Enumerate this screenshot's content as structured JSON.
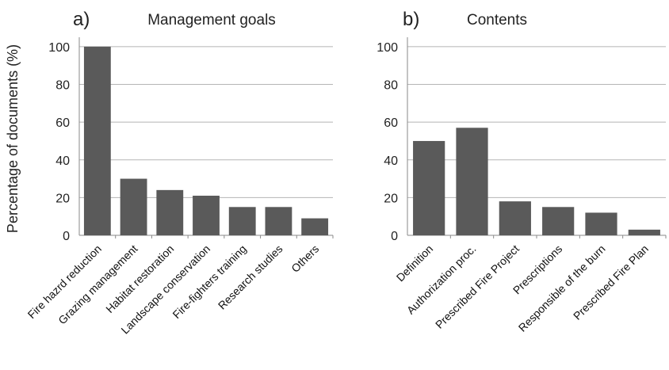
{
  "ylabel": "Percentage of documents (%)",
  "chart_data": [
    {
      "type": "bar",
      "panel_label": "a)",
      "title": "Management goals",
      "categories": [
        "Fire hazrd reduction",
        "Grazing management",
        "Habitat restoration",
        "Landscape conservation",
        "Fire-fighters training",
        "Research studies",
        "Others"
      ],
      "values": [
        100,
        30,
        24,
        21,
        15,
        15,
        9
      ],
      "ylim": [
        0,
        105
      ],
      "yticks": [
        "0",
        "20",
        "40",
        "60",
        "80",
        "100"
      ],
      "ylabel": "Percentage of documents (%)",
      "xlabel": "",
      "grid": true,
      "bar_color": "#5a5a5a"
    },
    {
      "type": "bar",
      "panel_label": "b)",
      "title": "Contents",
      "categories": [
        "Definition",
        "Authorization proc.",
        "Prescribed Fire Project",
        "Prescriptions",
        "Responsible of the burn",
        "Prescribed Fire Plan"
      ],
      "values": [
        50,
        57,
        18,
        15,
        12,
        3
      ],
      "ylim": [
        0,
        105
      ],
      "yticks": [
        "0",
        "20",
        "40",
        "60",
        "80",
        "100"
      ],
      "ylabel": "",
      "xlabel": "",
      "grid": true,
      "bar_color": "#5a5a5a"
    }
  ]
}
